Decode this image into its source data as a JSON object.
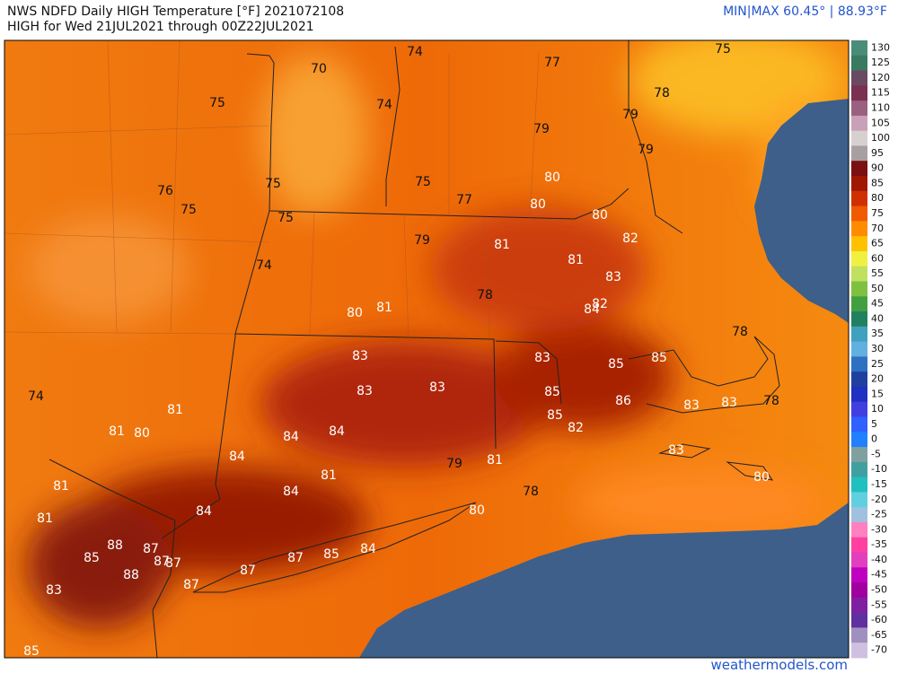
{
  "header": {
    "title": "NWS NDFD Daily HIGH Temperature [°F]  2021072108",
    "subtitle": "HIGH for Wed 21JUL2021 through 00Z22JUL2021",
    "minmax": "MIN|MAX 60.45°  |  88.93°F"
  },
  "labels": [
    74,
    77,
    75,
    70,
    78,
    75,
    74,
    79,
    79,
    79,
    80,
    76,
    75,
    75,
    77,
    75,
    80,
    80,
    75,
    79,
    81,
    82,
    81,
    74,
    83,
    78,
    80,
    81,
    82,
    84,
    78,
    83,
    83,
    85,
    85,
    83,
    83,
    85,
    86,
    83,
    83,
    78,
    74,
    81,
    85,
    82,
    81,
    80,
    84,
    84,
    84,
    83,
    79,
    81,
    81,
    80,
    81,
    84,
    78,
    84,
    80,
    81,
    88,
    87,
    84,
    85,
    87,
    87,
    85,
    87,
    87,
    88,
    87,
    83,
    85
  ],
  "colorbar": {
    "ticks": [
      130,
      125,
      120,
      115,
      110,
      105,
      100,
      95,
      90,
      85,
      80,
      75,
      70,
      65,
      60,
      55,
      50,
      45,
      40,
      35,
      30,
      25,
      20,
      15,
      10,
      5,
      0,
      -5,
      -10,
      -15,
      -20,
      -25,
      -30,
      -35,
      -40,
      -45,
      -50,
      -55,
      -60,
      -65,
      -70
    ],
    "colors": [
      "#4a8c7a",
      "#3a7a60",
      "#6a4a60",
      "#7a3050",
      "#9a6080",
      "#c8a0b8",
      "#d8d0d0",
      "#a8a0a0",
      "#7a1010",
      "#a01800",
      "#d03000",
      "#f05a00",
      "#ff8c00",
      "#ffc000",
      "#f0f040",
      "#c0e060",
      "#80c040",
      "#40a040",
      "#208060",
      "#40a0c0",
      "#60b0e0",
      "#3070c0",
      "#2040a0",
      "#2030c0",
      "#4040e0",
      "#3060ff",
      "#2080ff",
      "#80a0a0",
      "#40a0a0",
      "#20c0c0",
      "#60d0e0",
      "#a0c0e0",
      "#ff80c0",
      "#ff40a0",
      "#e040c0",
      "#c000c0",
      "#a000a0",
      "#8020a0",
      "#6030a0",
      "#a090c0",
      "#d0c0e0"
    ]
  },
  "footer": "weathermodels.com"
}
